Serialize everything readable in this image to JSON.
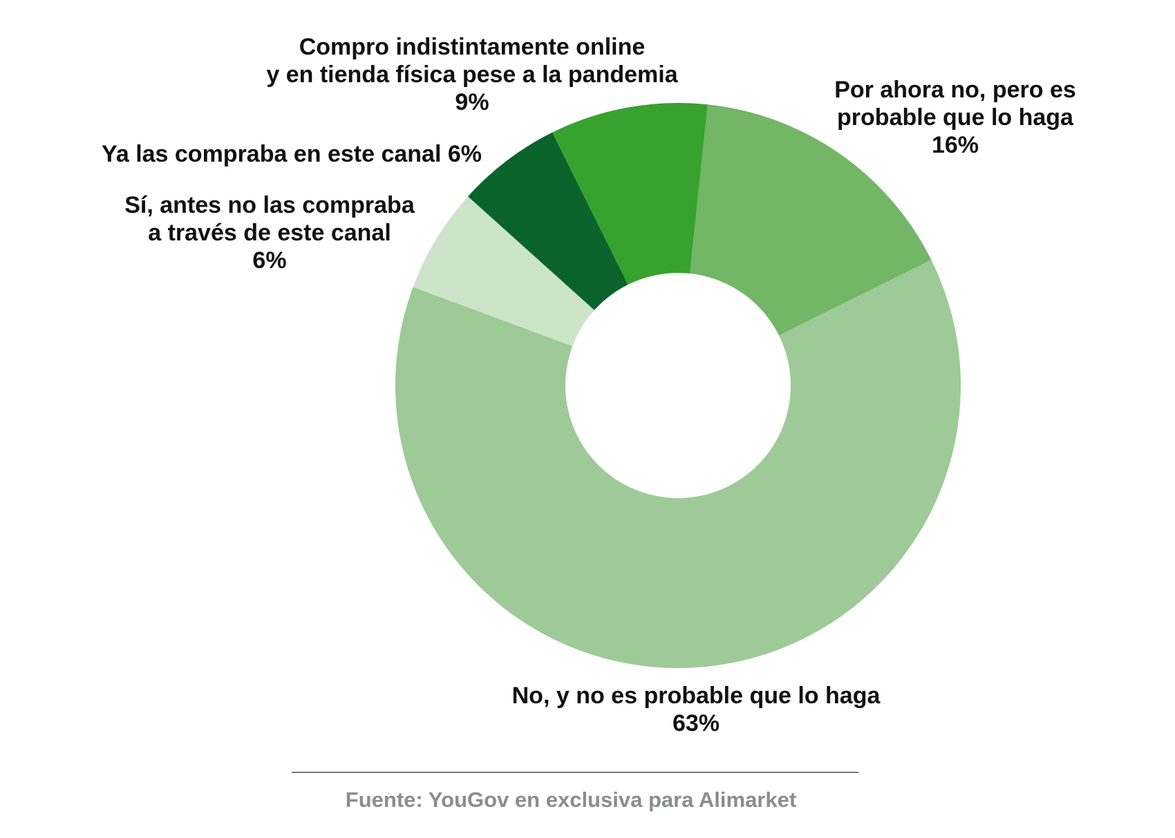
{
  "chart_data": {
    "type": "pie",
    "subtype": "donut",
    "start_angle_deg_clockwise_from_top": 6,
    "slices": [
      {
        "label_lines": [
          "Por ahora no, pero es",
          "probable que lo haga"
        ],
        "value_label": "16%",
        "value": 16,
        "color": "#72b666"
      },
      {
        "label_lines": [
          "No, y no es probable que lo haga"
        ],
        "value_label": "63%",
        "value": 63,
        "color": "#9dca96"
      },
      {
        "label_lines": [
          "Sí, antes no las compraba",
          "a través de este canal"
        ],
        "value_label": "6%",
        "value": 6,
        "color": "#cce4c8"
      },
      {
        "label_lines": [
          "Ya las compraba en este canal 6%"
        ],
        "value_label": "",
        "value": 6,
        "color": "#0a632b"
      },
      {
        "label_lines": [
          "Compro indistintamente online",
          "y en tienda física pese a la pandemia"
        ],
        "value_label": "9%",
        "value": 9,
        "color": "#37a22e"
      }
    ],
    "legend": "none"
  },
  "source": "Fuente: YouGov en exclusiva para Alimarket"
}
